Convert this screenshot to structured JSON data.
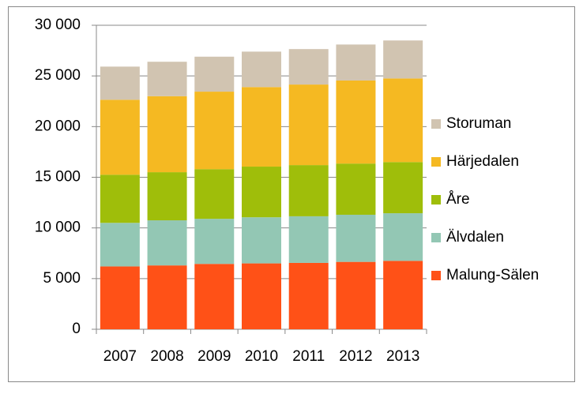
{
  "chart_data": {
    "type": "stacked_bar",
    "categories": [
      "2007",
      "2008",
      "2009",
      "2010",
      "2011",
      "2012",
      "2013"
    ],
    "series": [
      {
        "name": "Malung-Sälen",
        "color": "#ff5117",
        "values": [
          6200,
          6300,
          6450,
          6500,
          6550,
          6650,
          6750
        ]
      },
      {
        "name": "Älvdalen",
        "color": "#93c7b4",
        "values": [
          4300,
          4450,
          4450,
          4550,
          4600,
          4650,
          4700
        ]
      },
      {
        "name": "Åre",
        "color": "#9fbe0a",
        "values": [
          4750,
          4750,
          4900,
          5000,
          5050,
          5050,
          5050
        ]
      },
      {
        "name": "Härjedalen",
        "color": "#f5b922",
        "values": [
          7400,
          7500,
          7650,
          7850,
          7950,
          8200,
          8250
        ]
      },
      {
        "name": "Storuman",
        "color": "#d1c4b1",
        "values": [
          3270,
          3400,
          3450,
          3500,
          3500,
          3550,
          3750
        ]
      }
    ],
    "ylim": [
      0,
      30000
    ],
    "yticks": [
      0,
      {
        "value": 5000,
        "label": "5 000"
      },
      {
        "value": 10000,
        "label": "10 000"
      },
      {
        "value": 15000,
        "label": "15 000"
      },
      {
        "value": 20000,
        "label": "20 000"
      },
      {
        "value": 25000,
        "label": "25 000"
      },
      {
        "value": 30000,
        "label": "30 000"
      }
    ],
    "grid": true,
    "legend": "right"
  }
}
